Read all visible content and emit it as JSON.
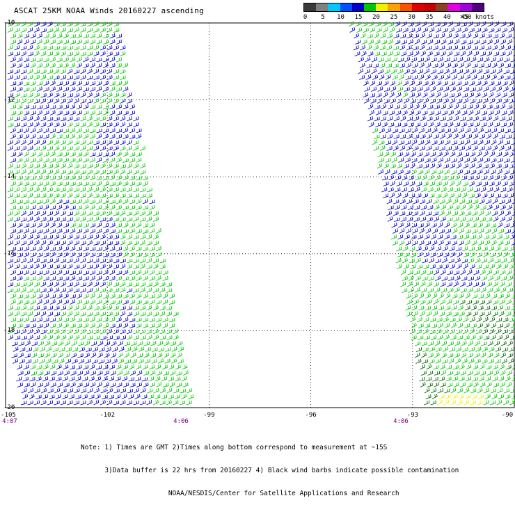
{
  "title": "ASCAT 25KM NOAA Winds 20160227 ascending",
  "speed_scale": {
    "labels": [
      "0",
      "5",
      "10",
      "15",
      "20",
      "25",
      "30",
      "35",
      "40",
      "45",
      ">50 knots"
    ],
    "colors": [
      "#3a3a3a",
      "#808080",
      "#00c8ff",
      "#0050ff",
      "#0000c8",
      "#00c800",
      "#f0f000",
      "#ffa000",
      "#ff5000",
      "#e00000",
      "#c80000",
      "#904020",
      "#e000e0",
      "#a000e0",
      "#500080"
    ]
  },
  "map": {
    "lat_labels": [
      "-10",
      "-12",
      "-14",
      "-16",
      "-18",
      "-20"
    ],
    "lon_labels": [
      "-105",
      "-102",
      "-99",
      "-96",
      "-93",
      "-90"
    ],
    "lat_range": [
      -20,
      -10
    ],
    "lon_range": [
      -105,
      -90
    ],
    "gridlines": "dotted",
    "swaths": [
      {
        "side": "west",
        "start_time": "4:07",
        "end_time": "4:06"
      },
      {
        "side": "east",
        "start_time": "4:06"
      }
    ],
    "barb_colors": {
      "blue": "#0000c8",
      "green": "#00c800",
      "dark_green": "#006400",
      "yellow": "#f0f000"
    }
  },
  "notes": [
    "Note: 1) Times are GMT 2)Times along bottom correspond to measurement at ~15S",
    "      3)Data buffer is 22 hrs from 20160227 4) Black wind barbs indicate possible contamination",
    "                      NOAA/NESDIS/Center for Satellite Applications and Research"
  ]
}
